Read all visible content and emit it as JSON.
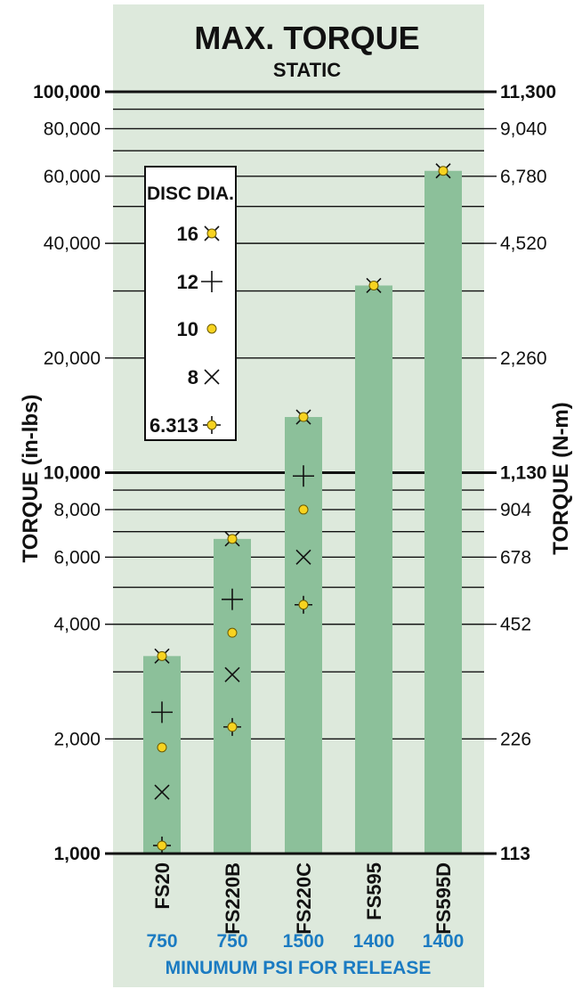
{
  "chart_data": {
    "type": "bar",
    "title": "MAX. TORQUE",
    "subtitle": "STATIC",
    "ylabel_left": "TORQUE (in-lbs)",
    "ylabel_right": "TORQUE (N-m)",
    "xlabel": "MINUMUM PSI FOR RELEASE",
    "yscale": "log",
    "ylim": [
      1000,
      100000
    ],
    "grid": true,
    "left_ticks": [
      {
        "value": 100000,
        "label": "100,000",
        "bold": true
      },
      {
        "value": 80000,
        "label": "80,000",
        "bold": false
      },
      {
        "value": 60000,
        "label": "60,000",
        "bold": false
      },
      {
        "value": 40000,
        "label": "40,000",
        "bold": false
      },
      {
        "value": 20000,
        "label": "20,000",
        "bold": false
      },
      {
        "value": 10000,
        "label": "10,000",
        "bold": true
      },
      {
        "value": 8000,
        "label": "8,000",
        "bold": false
      },
      {
        "value": 6000,
        "label": "6,000",
        "bold": false
      },
      {
        "value": 4000,
        "label": "4,000",
        "bold": false
      },
      {
        "value": 2000,
        "label": "2,000",
        "bold": false
      },
      {
        "value": 1000,
        "label": "1,000",
        "bold": true
      }
    ],
    "right_ticks": [
      {
        "value": 100000,
        "label": "11,300",
        "bold": true
      },
      {
        "value": 80000,
        "label": "9,040",
        "bold": false
      },
      {
        "value": 60000,
        "label": "6,780",
        "bold": false
      },
      {
        "value": 40000,
        "label": "4,520",
        "bold": false
      },
      {
        "value": 20000,
        "label": "2,260",
        "bold": false
      },
      {
        "value": 10000,
        "label": "1,130",
        "bold": true
      },
      {
        "value": 8000,
        "label": "904",
        "bold": false
      },
      {
        "value": 6000,
        "label": "678",
        "bold": false
      },
      {
        "value": 4000,
        "label": "452",
        "bold": false
      },
      {
        "value": 2000,
        "label": "226",
        "bold": false
      },
      {
        "value": 1000,
        "label": "113",
        "bold": true
      }
    ],
    "minor_gridlines": [
      90000,
      70000,
      50000,
      30000,
      9000,
      7000,
      5000,
      3000
    ],
    "categories": [
      {
        "name": "FS20",
        "psi": "750"
      },
      {
        "name": "FS220B",
        "psi": "750"
      },
      {
        "name": "FS220C",
        "psi": "1500"
      },
      {
        "name": "FS595",
        "psi": "1400"
      },
      {
        "name": "FS595D",
        "psi": "1400"
      }
    ],
    "values": [
      3300,
      6700,
      14000,
      31000,
      62000
    ],
    "legend": {
      "title": "DISC DIA.",
      "position": "top-left",
      "entries": [
        {
          "label": "16",
          "marker": "dot-cross"
        },
        {
          "label": "12",
          "marker": "plus"
        },
        {
          "label": "10",
          "marker": "dot"
        },
        {
          "label": "8",
          "marker": "cross"
        },
        {
          "label": "6.313",
          "marker": "dot-plus"
        }
      ]
    },
    "points": [
      {
        "category": 0,
        "disc": "16",
        "marker": "dot-cross",
        "value": 3300
      },
      {
        "category": 0,
        "disc": "12",
        "marker": "plus",
        "value": 2350
      },
      {
        "category": 0,
        "disc": "10",
        "marker": "dot",
        "value": 1900
      },
      {
        "category": 0,
        "disc": "8",
        "marker": "cross",
        "value": 1450
      },
      {
        "category": 0,
        "disc": "6.313",
        "marker": "dot-plus",
        "value": 1050
      },
      {
        "category": 1,
        "disc": "16",
        "marker": "dot-cross",
        "value": 6700
      },
      {
        "category": 1,
        "disc": "12",
        "marker": "plus",
        "value": 4650
      },
      {
        "category": 1,
        "disc": "10",
        "marker": "dot",
        "value": 3800
      },
      {
        "category": 1,
        "disc": "8",
        "marker": "cross",
        "value": 2950
      },
      {
        "category": 1,
        "disc": "6.313",
        "marker": "dot-plus",
        "value": 2150
      },
      {
        "category": 2,
        "disc": "16",
        "marker": "dot-cross",
        "value": 14000
      },
      {
        "category": 2,
        "disc": "12",
        "marker": "plus",
        "value": 9800
      },
      {
        "category": 2,
        "disc": "10",
        "marker": "dot",
        "value": 8000
      },
      {
        "category": 2,
        "disc": "8",
        "marker": "cross",
        "value": 6000
      },
      {
        "category": 2,
        "disc": "6.313",
        "marker": "dot-plus",
        "value": 4500
      },
      {
        "category": 3,
        "disc": "16",
        "marker": "dot-cross",
        "value": 31000
      },
      {
        "category": 4,
        "disc": "16",
        "marker": "dot-cross",
        "value": 62000
      }
    ],
    "colors": {
      "panel": "#dde9dc",
      "bar": "#8cc09a",
      "marker_fill": "#f7d320",
      "psi_text": "#1b7bc2",
      "text": "#111111"
    }
  }
}
